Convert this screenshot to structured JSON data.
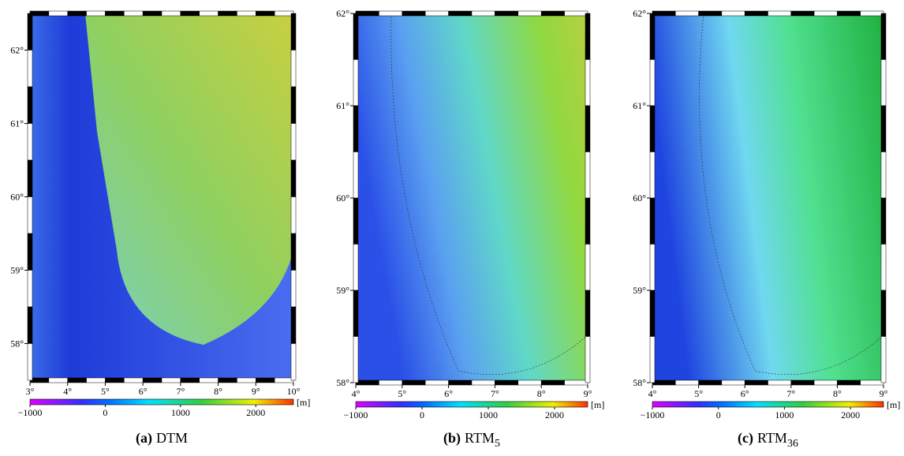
{
  "panels": [
    {
      "label": "(a)",
      "caption": "DTM",
      "xlim": [
        3,
        10
      ],
      "ylim": [
        57.5,
        62.5
      ],
      "xticks": [
        {
          "value": 3,
          "label": "3°"
        },
        {
          "value": 4,
          "label": "4°"
        },
        {
          "value": 5,
          "label": "5°"
        },
        {
          "value": 6,
          "label": "6°"
        },
        {
          "value": 7,
          "label": "7°"
        },
        {
          "value": 8,
          "label": "8°"
        },
        {
          "value": 9,
          "label": "9°"
        },
        {
          "value": 10,
          "label": "10°"
        }
      ],
      "yticks": [
        {
          "value": 58,
          "label": "58°"
        },
        {
          "value": 59,
          "label": "59°"
        },
        {
          "value": 60,
          "label": "60°"
        },
        {
          "value": 61,
          "label": "61°"
        },
        {
          "value": 62,
          "label": "62°"
        }
      ]
    },
    {
      "label": "(b)",
      "caption": "RTM",
      "subscript": "5",
      "xlim": [
        4,
        9
      ],
      "ylim": [
        58,
        62
      ],
      "xticks": [
        {
          "value": 4,
          "label": "4°"
        },
        {
          "value": 5,
          "label": "5°"
        },
        {
          "value": 6,
          "label": "6°"
        },
        {
          "value": 7,
          "label": "7°"
        },
        {
          "value": 8,
          "label": "8°"
        },
        {
          "value": 9,
          "label": "9°"
        }
      ],
      "yticks": [
        {
          "value": 58,
          "label": "58°"
        },
        {
          "value": 59,
          "label": "59°"
        },
        {
          "value": 60,
          "label": "60°"
        },
        {
          "value": 61,
          "label": "61°"
        },
        {
          "value": 62,
          "label": "62°"
        }
      ]
    },
    {
      "label": "(c)",
      "caption": "RTM",
      "subscript": "36",
      "xlim": [
        4,
        9
      ],
      "ylim": [
        58,
        62
      ],
      "xticks": [
        {
          "value": 4,
          "label": "4°"
        },
        {
          "value": 5,
          "label": "5°"
        },
        {
          "value": 6,
          "label": "6°"
        },
        {
          "value": 7,
          "label": "7°"
        },
        {
          "value": 8,
          "label": "8°"
        },
        {
          "value": 9,
          "label": "9°"
        }
      ],
      "yticks": [
        {
          "value": 58,
          "label": "58°"
        },
        {
          "value": 59,
          "label": "59°"
        },
        {
          "value": 60,
          "label": "60°"
        },
        {
          "value": 61,
          "label": "61°"
        },
        {
          "value": 62,
          "label": "62°"
        }
      ]
    }
  ],
  "colorbar": {
    "unit": "[m]",
    "lim": [
      -1000,
      2500
    ],
    "ticks": [
      {
        "value": -1000,
        "label": "−1000"
      },
      0,
      1000,
      2000
    ]
  }
}
